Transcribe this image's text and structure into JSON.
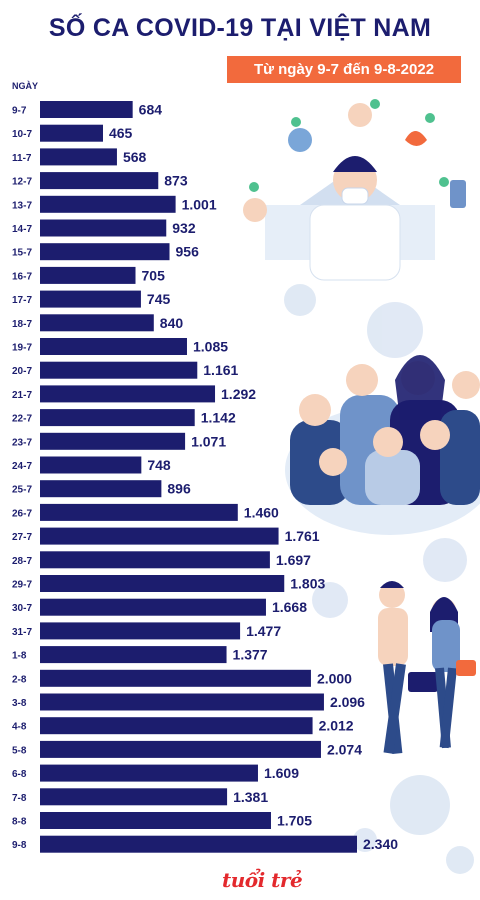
{
  "title": "SỐ CA COVID-19 TẠI VIỆT NAM",
  "subtitle": "Từ ngày 9-7 đến 9-8-2022",
  "logo_text": "tuổi trẻ",
  "colors": {
    "bar": "#1c1d6e",
    "title": "#1c1d6e",
    "badge": "#f26a3d",
    "logo": "#e3292d"
  },
  "chart_data": {
    "type": "bar",
    "orientation": "horizontal",
    "title": "SỐ CA COVID-19 TẠI VIỆT NAM",
    "subtitle": "Từ ngày 9-7 đến 9-8-2022",
    "ylabel": "NGÀY",
    "xlabel": "",
    "xlim": [
      0,
      2340
    ],
    "grid": false,
    "legend": "none",
    "categories": [
      "9-7",
      "10-7",
      "11-7",
      "12-7",
      "13-7",
      "14-7",
      "15-7",
      "16-7",
      "17-7",
      "18-7",
      "19-7",
      "20-7",
      "21-7",
      "22-7",
      "23-7",
      "24-7",
      "25-7",
      "26-7",
      "27-7",
      "28-7",
      "29-7",
      "30-7",
      "31-7",
      "1-8",
      "2-8",
      "3-8",
      "4-8",
      "5-8",
      "6-8",
      "7-8",
      "8-8",
      "9-8"
    ],
    "values": [
      684,
      465,
      568,
      873,
      1001,
      932,
      956,
      705,
      745,
      840,
      1085,
      1161,
      1292,
      1142,
      1071,
      748,
      896,
      1460,
      1761,
      1697,
      1803,
      1668,
      1477,
      1377,
      2000,
      2096,
      2012,
      2074,
      1609,
      1381,
      1705,
      2340
    ],
    "value_labels": [
      "684",
      "465",
      "568",
      "873",
      "1.001",
      "932",
      "956",
      "705",
      "745",
      "840",
      "1.085",
      "1.161",
      "1.292",
      "1.142",
      "1.071",
      "748",
      "896",
      "1.460",
      "1.761",
      "1.697",
      "1.803",
      "1.668",
      "1.477",
      "1.377",
      "2.000",
      "2.096",
      "2.012",
      "2.074",
      "1.609",
      "1.381",
      "1.705",
      "2.340"
    ]
  }
}
